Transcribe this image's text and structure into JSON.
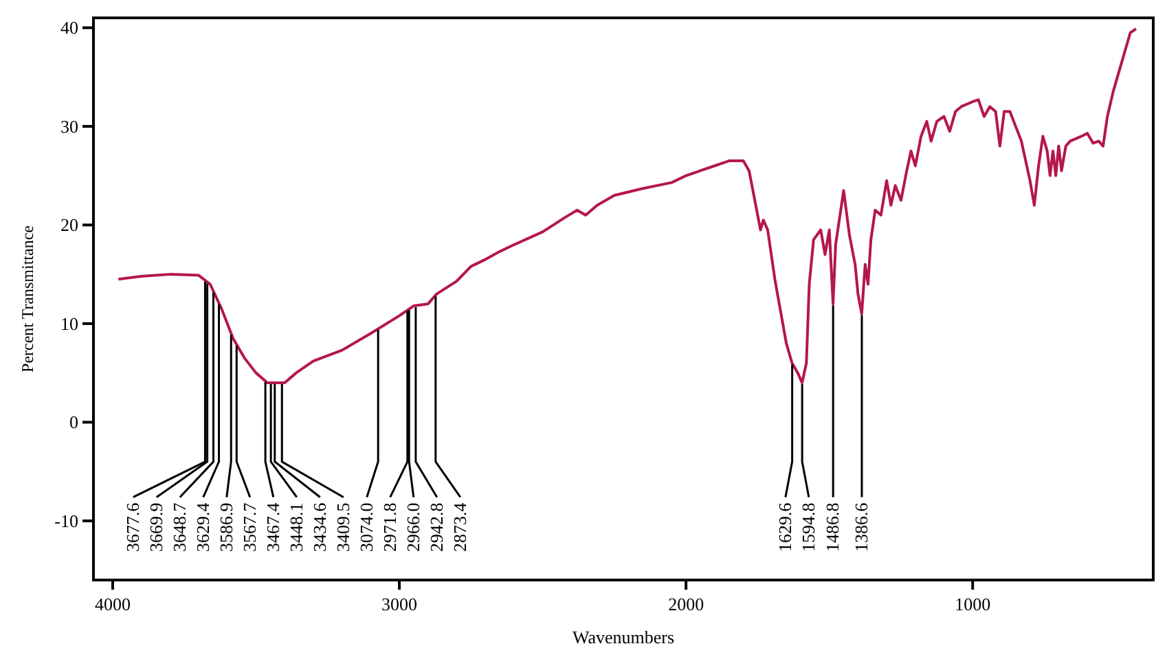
{
  "chart_data": {
    "type": "line",
    "xlabel": "Wavenumbers",
    "ylabel": "Percent Transmittance",
    "xlim": [
      4067,
      370
    ],
    "ylim": [
      -16,
      41
    ],
    "xticks": [
      4000,
      3000,
      2000,
      1000
    ],
    "yticks": [
      -10,
      0,
      10,
      20,
      30,
      40
    ],
    "grid": false,
    "marker": "none",
    "line_style": "solid",
    "series": [
      {
        "color": "#b5174a",
        "x": [
          3980,
          3900,
          3800,
          3700,
          3660,
          3620,
          3580,
          3540,
          3500,
          3460,
          3400,
          3360,
          3300,
          3200,
          3100,
          3000,
          2950,
          2900,
          2870,
          2800,
          2750,
          2700,
          2650,
          2600,
          2500,
          2420,
          2380,
          2350,
          2310,
          2250,
          2150,
          2050,
          2000,
          1900,
          1850,
          1800,
          1780,
          1760,
          1740,
          1730,
          1715,
          1690,
          1650,
          1630,
          1610,
          1595,
          1580,
          1570,
          1555,
          1530,
          1515,
          1500,
          1487,
          1478,
          1450,
          1430,
          1410,
          1400,
          1387,
          1375,
          1365,
          1355,
          1340,
          1320,
          1300,
          1285,
          1270,
          1250,
          1230,
          1215,
          1200,
          1180,
          1160,
          1145,
          1125,
          1100,
          1080,
          1060,
          1040,
          1000,
          980,
          960,
          940,
          920,
          905,
          890,
          870,
          850,
          830,
          800,
          785,
          770,
          755,
          740,
          730,
          720,
          710,
          700,
          690,
          675,
          660,
          620,
          600,
          580,
          560,
          545,
          530,
          510,
          490,
          470,
          450,
          430
        ],
        "values": [
          14.5,
          14.8,
          15.0,
          14.9,
          14.0,
          11.5,
          8.5,
          6.5,
          5.0,
          4.0,
          4.0,
          5.0,
          6.2,
          7.3,
          9.0,
          10.8,
          11.8,
          12.0,
          13.0,
          14.3,
          15.8,
          16.5,
          17.3,
          18.0,
          19.3,
          20.8,
          21.5,
          21.0,
          22.0,
          23.0,
          23.7,
          24.3,
          25.0,
          26.0,
          26.5,
          26.5,
          25.5,
          22.5,
          19.5,
          20.5,
          19.5,
          14.5,
          8.0,
          6.0,
          5.0,
          4.0,
          6.0,
          14.0,
          18.5,
          19.5,
          17.0,
          19.5,
          12.0,
          18.0,
          23.5,
          19.0,
          16.0,
          13.0,
          11.0,
          16.0,
          14.0,
          18.5,
          21.5,
          21.0,
          24.5,
          22.0,
          24.0,
          22.5,
          25.5,
          27.5,
          26.0,
          29.0,
          30.5,
          28.5,
          30.5,
          31.0,
          29.5,
          31.5,
          32.0,
          32.5,
          32.7,
          31.0,
          32.0,
          31.5,
          28.0,
          31.5,
          31.5,
          30.0,
          28.5,
          24.5,
          22.0,
          26.0,
          29.0,
          27.5,
          25.0,
          27.5,
          25.0,
          28.0,
          25.5,
          28.0,
          28.5,
          29.0,
          29.3,
          28.3,
          28.5,
          28.0,
          31.0,
          33.5,
          35.5,
          37.5,
          39.5,
          39.9
        ]
      }
    ],
    "annotations": [
      {
        "text": "3677.6",
        "x": 3677.6,
        "y": 14.4
      },
      {
        "text": "3669.9",
        "x": 3669.9,
        "y": 14.2
      },
      {
        "text": "3648.7",
        "x": 3648.7,
        "y": 13.3
      },
      {
        "text": "3629.4",
        "x": 3629.4,
        "y": 12.1
      },
      {
        "text": "3586.9",
        "x": 3586.9,
        "y": 9.0
      },
      {
        "text": "3567.7",
        "x": 3567.7,
        "y": 7.9
      },
      {
        "text": "3467.4",
        "x": 3467.4,
        "y": 4.2
      },
      {
        "text": "3448.1",
        "x": 3448.1,
        "y": 4.0
      },
      {
        "text": "3434.6",
        "x": 3434.6,
        "y": 4.0
      },
      {
        "text": "3409.5",
        "x": 3409.5,
        "y": 4.0
      },
      {
        "text": "3074.0",
        "x": 3074.0,
        "y": 9.5
      },
      {
        "text": "2971.8",
        "x": 2971.8,
        "y": 11.4
      },
      {
        "text": "2966.0",
        "x": 2966.0,
        "y": 11.5
      },
      {
        "text": "2942.8",
        "x": 2942.8,
        "y": 11.8
      },
      {
        "text": "2873.4",
        "x": 2873.4,
        "y": 12.9
      },
      {
        "text": "1629.6",
        "x": 1629.6,
        "y": 6.0
      },
      {
        "text": "1594.8",
        "x": 1594.8,
        "y": 4.0
      },
      {
        "text": "1486.8",
        "x": 1486.8,
        "y": 12.0
      },
      {
        "text": "1386.6",
        "x": 1386.6,
        "y": 11.0
      }
    ]
  }
}
